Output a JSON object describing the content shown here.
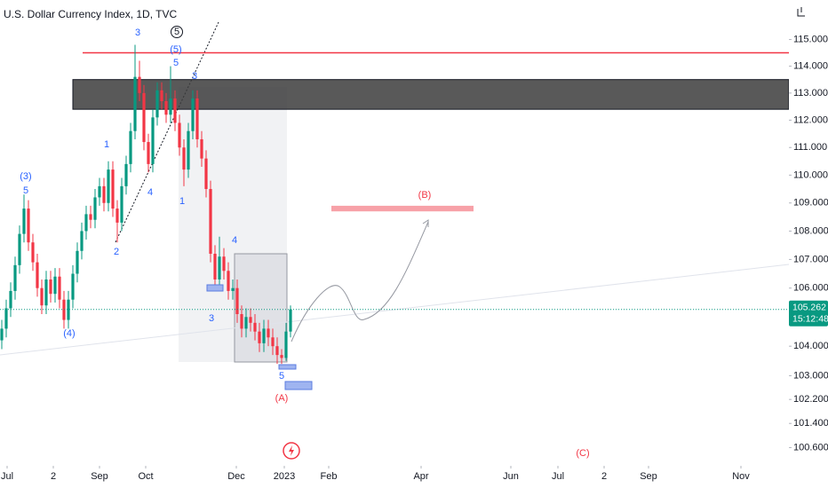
{
  "chart_data": {
    "type": "candlestick",
    "title": "U.S. Dollar Currency Index, 1D, TVC",
    "log_scale": true,
    "up_color": "#089981",
    "down_color": "#f23645",
    "xlim": [
      -0.4,
      177.2
    ],
    "ylim": [
      100,
      116.5
    ],
    "xticks": [
      {
        "value": 1.2,
        "label": "Jul"
      },
      {
        "value": 11.6,
        "label": "2"
      },
      {
        "value": 22,
        "label": "Sep"
      },
      {
        "value": 32.4,
        "label": "Oct"
      },
      {
        "value": 52.8,
        "label": "Dec"
      },
      {
        "value": 63.6,
        "label": "2023"
      },
      {
        "value": 73.6,
        "label": "Feb"
      },
      {
        "value": 94.4,
        "label": "Apr"
      },
      {
        "value": 114.6,
        "label": "Jun"
      },
      {
        "value": 125.2,
        "label": "Jul"
      },
      {
        "value": 135.6,
        "label": "2"
      },
      {
        "value": 145.6,
        "label": "Sep"
      },
      {
        "value": 166.4,
        "label": "Nov"
      }
    ],
    "yticks": [
      {
        "value": 115,
        "label": "115.000"
      },
      {
        "value": 114,
        "label": "114.000"
      },
      {
        "value": 113,
        "label": "113.000"
      },
      {
        "value": 112,
        "label": "112.000"
      },
      {
        "value": 111,
        "label": "111.000"
      },
      {
        "value": 110,
        "label": "110.000"
      },
      {
        "value": 109,
        "label": "109.000"
      },
      {
        "value": 108,
        "label": "108.000"
      },
      {
        "value": 107,
        "label": "107.000"
      },
      {
        "value": 106,
        "label": "106.000"
      },
      {
        "value": 104,
        "label": "104.000"
      },
      {
        "value": 103,
        "label": "103.000"
      },
      {
        "value": 102.2,
        "label": "102.200"
      },
      {
        "value": 101.4,
        "label": "101.400"
      },
      {
        "value": 100.6,
        "label": "100.600"
      }
    ],
    "open": [
      104.2,
      104.6,
      105.3,
      105.9,
      106.8,
      107.9,
      108.8,
      107.6,
      106.9,
      106.0,
      105.4,
      106.3,
      105.8,
      106.4,
      105.6,
      104.9,
      105.6,
      106.5,
      107.3,
      108.0,
      108.6,
      108.4,
      109.2,
      109.6,
      109.0,
      110.2,
      108.8,
      108.3,
      109.6,
      110.4,
      111.6,
      113.6,
      113.0,
      111.2,
      110.4,
      112.1,
      113.1,
      112.7,
      112.2,
      112.8,
      111.9,
      111.0,
      110.2,
      111.6,
      112.8,
      111.3,
      110.6,
      109.5,
      107.2,
      106.3,
      107.1,
      106.6,
      105.9,
      106.0,
      105.1,
      104.6,
      105.0,
      104.8,
      104.5,
      104.1,
      104.6,
      104.3,
      104.0,
      103.7,
      103.6,
      104.5
    ],
    "high": [
      104.9,
      105.6,
      106.2,
      107.1,
      108.2,
      109.3,
      109.1,
      107.9,
      107.2,
      106.3,
      106.6,
      106.6,
      106.7,
      106.7,
      105.9,
      105.9,
      106.8,
      107.6,
      108.3,
      108.9,
      108.9,
      109.5,
      109.9,
      109.9,
      110.5,
      110.5,
      109.1,
      109.9,
      110.7,
      111.9,
      114.8,
      114.2,
      113.3,
      111.5,
      112.4,
      113.4,
      113.4,
      113.0,
      114.0,
      113.1,
      112.2,
      111.3,
      111.9,
      113.1,
      113.1,
      111.6,
      110.9,
      109.8,
      107.5,
      107.8,
      107.4,
      106.9,
      106.3,
      106.3,
      105.4,
      105.3,
      105.3,
      105.1,
      104.8,
      104.9,
      104.9,
      104.6,
      104.3,
      103.9,
      104.8,
      105.4
    ],
    "low": [
      103.9,
      104.3,
      105.0,
      105.6,
      106.5,
      107.6,
      107.3,
      106.6,
      105.7,
      105.1,
      105.1,
      105.5,
      105.5,
      105.3,
      104.6,
      104.6,
      105.3,
      106.2,
      107.0,
      107.7,
      108.1,
      108.1,
      108.9,
      108.7,
      108.7,
      108.5,
      107.6,
      108.0,
      109.3,
      110.1,
      111.3,
      112.7,
      110.9,
      110.1,
      110.1,
      111.8,
      112.4,
      111.9,
      111.9,
      111.6,
      110.7,
      109.6,
      109.9,
      111.3,
      111.0,
      110.3,
      109.2,
      106.9,
      106.0,
      106.0,
      106.3,
      105.6,
      105.6,
      104.8,
      104.3,
      104.3,
      104.5,
      104.2,
      103.8,
      103.8,
      104.0,
      103.7,
      103.4,
      103.4,
      103.5,
      104.3
    ],
    "close": [
      104.6,
      105.3,
      105.9,
      106.8,
      107.9,
      108.8,
      107.6,
      106.9,
      106.0,
      105.4,
      106.3,
      105.8,
      106.4,
      105.6,
      104.9,
      105.6,
      106.5,
      107.3,
      108.0,
      108.6,
      108.4,
      109.2,
      109.6,
      109.0,
      110.2,
      108.8,
      108.3,
      109.6,
      110.4,
      111.6,
      113.6,
      113.0,
      111.2,
      110.4,
      112.1,
      113.1,
      112.7,
      112.2,
      112.8,
      111.9,
      111.0,
      110.2,
      111.6,
      112.8,
      111.3,
      110.6,
      109.5,
      107.2,
      106.3,
      107.1,
      106.6,
      105.9,
      106.0,
      105.1,
      104.6,
      105.0,
      104.8,
      104.5,
      104.1,
      104.6,
      104.3,
      104.0,
      103.7,
      103.6,
      104.5,
      105.26
    ],
    "last_price": 105.262,
    "countdown": "15:12:48",
    "resistance_line": 114.5,
    "resistance_zone": [
      112.4,
      113.5
    ],
    "target_zone": [
      108.7,
      108.9
    ],
    "annotations": [
      {
        "text": "3",
        "color": "#2962ff"
      },
      {
        "text": "5",
        "color": "#131722"
      },
      {
        "text": "(5)",
        "color": "#2962ff"
      },
      {
        "text": "5",
        "color": "#2962ff"
      },
      {
        "text": "3",
        "color": "#2962ff"
      },
      {
        "text": "1",
        "color": "#2962ff"
      },
      {
        "text": "(3)",
        "color": "#2962ff"
      },
      {
        "text": "5",
        "color": "#2962ff"
      },
      {
        "text": "4",
        "color": "#2962ff"
      },
      {
        "text": "1",
        "color": "#2962ff"
      },
      {
        "text": "2",
        "color": "#2962ff"
      },
      {
        "text": "4",
        "color": "#2962ff"
      },
      {
        "text": "3",
        "color": "#2962ff"
      },
      {
        "text": "(4)",
        "color": "#2962ff"
      },
      {
        "text": "5",
        "color": "#2962ff"
      },
      {
        "text": "(A)",
        "color": "#f23645"
      },
      {
        "text": "(B)",
        "color": "#f23645"
      },
      {
        "text": "(C)",
        "color": "#f23645"
      }
    ]
  }
}
